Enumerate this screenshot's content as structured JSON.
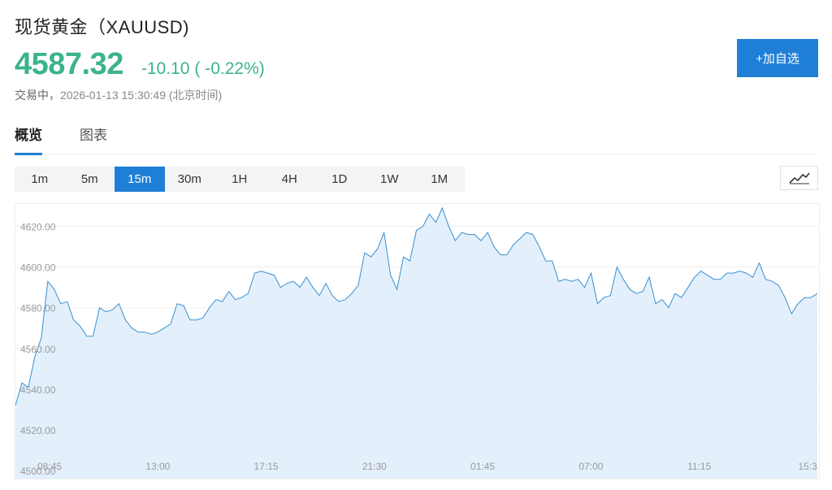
{
  "header": {
    "title": "现货黄金（XAUUSD)",
    "price": "4587.32",
    "change": "-10.10",
    "change_pct": "( -0.22%)",
    "status": "交易中，",
    "timestamp": "2026-01-13 15:30:49 (北京时间)",
    "add_watchlist_label": "+加自选"
  },
  "tabs": [
    {
      "label": "概览",
      "active": true
    },
    {
      "label": "图表",
      "active": false
    }
  ],
  "intervals": [
    {
      "label": "1m",
      "active": false
    },
    {
      "label": "5m",
      "active": false
    },
    {
      "label": "15m",
      "active": true
    },
    {
      "label": "30m",
      "active": false
    },
    {
      "label": "1H",
      "active": false
    },
    {
      "label": "4H",
      "active": false
    },
    {
      "label": "1D",
      "active": false
    },
    {
      "label": "1W",
      "active": false
    },
    {
      "label": "1M",
      "active": false
    }
  ],
  "chart_type_icon": "line-chart-icon",
  "colors": {
    "accent": "#1f7fd6",
    "up_down": "#3cb48a",
    "line": "#3a8fd0",
    "fill": "#e3f0fb"
  },
  "chart_data": {
    "type": "area",
    "ylim": [
      4500,
      4635
    ],
    "y_ticks": [
      "4500.00",
      "4520.00",
      "4540.00",
      "4560.00",
      "4580.00",
      "4600.00",
      "4620.00"
    ],
    "x_ticks": [
      "08:45",
      "13:00",
      "17:15",
      "21:30",
      "01:45",
      "07:00",
      "11:15",
      "15:3"
    ],
    "values": [
      4532,
      4543,
      4541,
      4556,
      4565,
      4593,
      4589,
      4582,
      4583,
      4574,
      4571,
      4566,
      4566,
      4580,
      4578,
      4579,
      4582,
      4574,
      4570,
      4568,
      4568,
      4567,
      4568,
      4570,
      4572,
      4582,
      4581,
      4574,
      4574,
      4575,
      4580,
      4584,
      4583,
      4588,
      4584,
      4585,
      4587,
      4597,
      4598,
      4597,
      4596,
      4590,
      4592,
      4593,
      4590,
      4595,
      4590,
      4586,
      4592,
      4586,
      4583,
      4584,
      4587,
      4591,
      4607,
      4605,
      4609,
      4617,
      4596,
      4589,
      4605,
      4603,
      4618,
      4620,
      4626,
      4622,
      4629,
      4620,
      4613,
      4617,
      4616,
      4616,
      4613,
      4617,
      4610,
      4606,
      4606,
      4611,
      4614,
      4617,
      4616,
      4610,
      4603,
      4603,
      4593,
      4594,
      4593,
      4594,
      4590,
      4597,
      4582,
      4585,
      4586,
      4600,
      4594,
      4589,
      4587,
      4588,
      4595,
      4582,
      4584,
      4580,
      4587,
      4585,
      4590,
      4595,
      4598,
      4596,
      4594,
      4594,
      4597,
      4597,
      4598,
      4597,
      4595,
      4602,
      4594,
      4593,
      4591,
      4585,
      4577,
      4582,
      4585,
      4585,
      4587
    ]
  }
}
